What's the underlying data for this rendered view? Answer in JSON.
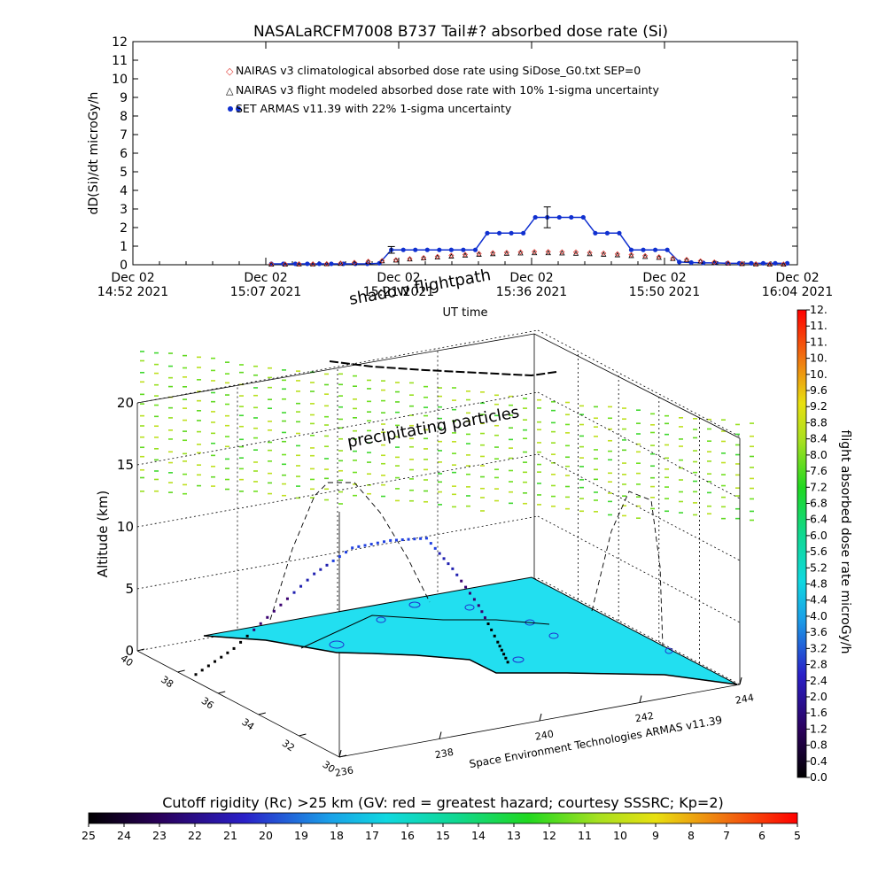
{
  "title": "NASALaRCFM7008  B737 Tail#? absorbed dose rate (Si)",
  "chart_data": [
    {
      "type": "line",
      "ylabel": "dD(Si)/dt microGy/h",
      "xlabel": "UT time",
      "ylim": [
        0,
        12
      ],
      "y_ticks": [
        "0",
        "1",
        "2",
        "3",
        "4",
        "5",
        "6",
        "7",
        "8",
        "9",
        "10",
        "11",
        "12"
      ],
      "x_ticks": [
        {
          "date": "Dec 02",
          "time": "14:52 2021"
        },
        {
          "date": "Dec 02",
          "time": "15:07 2021"
        },
        {
          "date": "Dec 02",
          "time": "15:21 2021"
        },
        {
          "date": "Dec 02",
          "time": "15:36 2021"
        },
        {
          "date": "Dec 02",
          "time": "15:50 2021"
        },
        {
          "date": "Dec 02",
          "time": "16:04 2021"
        }
      ],
      "legend": [
        "NAIRAS v3 climatological absorbed dose rate using SiDose_G0.txt SEP=0",
        "NAIRAS v3 flight modeled absorbed dose rate with 10% 1-sigma uncertainty",
        "SET ARMAS v11.39 with 22% 1-sigma uncertainty"
      ],
      "legend_placement": "top-left",
      "series": [
        {
          "name": "NAIRAS v3 climatological absorbed dose rate using SiDose_G0.txt SEP=0",
          "color": "#e0403a",
          "marker": "diamond",
          "x_min": [
            15.0,
            16.5,
            18.0,
            19.5,
            21.0,
            22.5,
            24.0,
            25.5,
            27.0,
            28.5,
            30.0,
            31.5,
            33.0,
            34.5,
            36.0,
            37.5,
            39.0,
            40.5,
            42.0,
            43.5,
            45.0,
            46.5,
            48.0,
            49.5,
            51.0,
            52.5,
            54.0,
            55.5,
            57.0,
            58.5,
            60.0,
            61.5,
            63.0,
            64.5,
            66.0,
            67.5,
            69.0,
            70.5
          ],
          "values": [
            0.03,
            0.03,
            0.04,
            0.04,
            0.05,
            0.08,
            0.12,
            0.18,
            0.22,
            0.26,
            0.32,
            0.38,
            0.44,
            0.5,
            0.55,
            0.6,
            0.64,
            0.66,
            0.68,
            0.7,
            0.7,
            0.69,
            0.68,
            0.65,
            0.62,
            0.58,
            0.54,
            0.48,
            0.42,
            0.35,
            0.28,
            0.2,
            0.14,
            0.09,
            0.06,
            0.04,
            0.03,
            0.03
          ]
        },
        {
          "name": "NAIRAS v3 flight modeled absorbed dose rate with 10% 1-sigma uncertainty",
          "color": "#000000",
          "marker": "triangle",
          "x_min": [
            15.0,
            16.5,
            18.0,
            19.5,
            21.0,
            22.5,
            24.0,
            25.5,
            27.0,
            28.5,
            30.0,
            31.5,
            33.0,
            34.5,
            36.0,
            37.5,
            39.0,
            40.5,
            42.0,
            43.5,
            45.0,
            46.5,
            48.0,
            49.5,
            51.0,
            52.5,
            54.0,
            55.5,
            57.0,
            58.5,
            60.0,
            61.5,
            63.0,
            64.5,
            66.0,
            67.5,
            69.0,
            70.5
          ],
          "values": [
            0.02,
            0.02,
            0.03,
            0.03,
            0.04,
            0.06,
            0.1,
            0.15,
            0.2,
            0.24,
            0.3,
            0.35,
            0.4,
            0.45,
            0.5,
            0.55,
            0.58,
            0.6,
            0.62,
            0.63,
            0.63,
            0.62,
            0.6,
            0.58,
            0.55,
            0.52,
            0.48,
            0.43,
            0.38,
            0.32,
            0.25,
            0.18,
            0.12,
            0.08,
            0.05,
            0.03,
            0.02,
            0.02
          ]
        },
        {
          "name": "SET ARMAS v11.39 with 22% 1-sigma uncertainty",
          "color": "#1030d0",
          "marker": "circle",
          "x_min": [
            15.0,
            16.3,
            17.6,
            18.9,
            20.2,
            21.5,
            22.8,
            24.1,
            25.4,
            26.7,
            28.0,
            29.3,
            30.6,
            31.9,
            33.2,
            34.5,
            35.8,
            37.1,
            38.4,
            39.7,
            41.0,
            42.3,
            43.6,
            44.9,
            46.2,
            47.5,
            48.8,
            50.1,
            51.4,
            52.7,
            54.0,
            55.3,
            56.6,
            57.9,
            59.2,
            60.5,
            61.8,
            63.1,
            64.4,
            65.7,
            67.0,
            68.3,
            69.6,
            70.9
          ],
          "values": [
            0.05,
            0.05,
            0.05,
            0.05,
            0.05,
            0.05,
            0.05,
            0.05,
            0.05,
            0.08,
            0.8,
            0.8,
            0.8,
            0.8,
            0.8,
            0.8,
            0.8,
            0.8,
            1.7,
            1.7,
            1.7,
            1.7,
            2.55,
            2.55,
            2.55,
            2.55,
            2.55,
            1.7,
            1.7,
            1.7,
            0.8,
            0.8,
            0.8,
            0.8,
            0.15,
            0.12,
            0.1,
            0.1,
            0.08,
            0.08,
            0.08,
            0.08,
            0.08,
            0.08
          ],
          "error_bars": [
            {
              "x_min": 28.0,
              "value": 0.8,
              "err": 0.18
            },
            {
              "x_min": 44.9,
              "value": 2.55,
              "err": 0.56
            }
          ]
        }
      ]
    },
    {
      "type": "scatter",
      "zlabel": "Altitude (km)",
      "xlabel": "Space Environment Technologies ARMAS v11.39",
      "z_ticks": [
        "0",
        "5",
        "10",
        "15",
        "20"
      ],
      "x_ticks": [
        "236",
        "238",
        "240",
        "242",
        "244"
      ],
      "y_ticks": [
        "40",
        "38",
        "36",
        "34",
        "32",
        "30"
      ],
      "annotations": [
        "shadow flightpath",
        "precipitating particles"
      ],
      "flight_path": [
        {
          "lon": 236.2,
          "lat": 37.6,
          "alt_km": 0.0,
          "dose": 0.3
        },
        {
          "lon": 236.8,
          "lat": 37.2,
          "alt_km": 2.0,
          "dose": 0.6
        },
        {
          "lon": 237.4,
          "lat": 36.7,
          "alt_km": 5.0,
          "dose": 1.2
        },
        {
          "lon": 238.0,
          "lat": 36.2,
          "alt_km": 8.0,
          "dose": 2.0
        },
        {
          "lon": 238.6,
          "lat": 35.8,
          "alt_km": 10.0,
          "dose": 2.4
        },
        {
          "lon": 239.2,
          "lat": 35.4,
          "alt_km": 10.5,
          "dose": 2.5
        },
        {
          "lon": 239.8,
          "lat": 35.1,
          "alt_km": 10.5,
          "dose": 2.5
        },
        {
          "lon": 240.2,
          "lat": 34.8,
          "alt_km": 8.0,
          "dose": 1.8
        },
        {
          "lon": 240.6,
          "lat": 34.5,
          "alt_km": 5.0,
          "dose": 1.0
        },
        {
          "lon": 240.9,
          "lat": 34.3,
          "alt_km": 2.0,
          "dose": 0.5
        },
        {
          "lon": 241.1,
          "lat": 34.2,
          "alt_km": 0.0,
          "dose": 0.2
        }
      ]
    },
    {
      "type": "heatmap",
      "title": "flight absorbed dose rate microGy/h",
      "ticks": [
        "0.0",
        "0.4",
        "0.8",
        "1.2",
        "1.6",
        "2.0",
        "2.4",
        "2.8",
        "3.2",
        "3.6",
        "4.0",
        "4.4",
        "4.8",
        "5.2",
        "5.6",
        "6.0",
        "6.4",
        "6.8",
        "7.2",
        "7.6",
        "8.0",
        "8.4",
        "8.8",
        "9.2",
        "9.6",
        "10.",
        "10.",
        "11.",
        "11.",
        "12."
      ],
      "range": [
        0,
        12
      ]
    },
    {
      "type": "heatmap",
      "title": "Cutoff rigidity (Rc) >25 km (GV: red = greatest hazard; courtesy SSSRC; Kp=2)",
      "ticks": [
        "25",
        "24",
        "23",
        "22",
        "21",
        "20",
        "19",
        "18",
        "17",
        "16",
        "15",
        "14",
        "13",
        "12",
        "11",
        "10",
        "9",
        "8",
        "7",
        "6",
        "5"
      ],
      "range": [
        25,
        5
      ]
    }
  ]
}
